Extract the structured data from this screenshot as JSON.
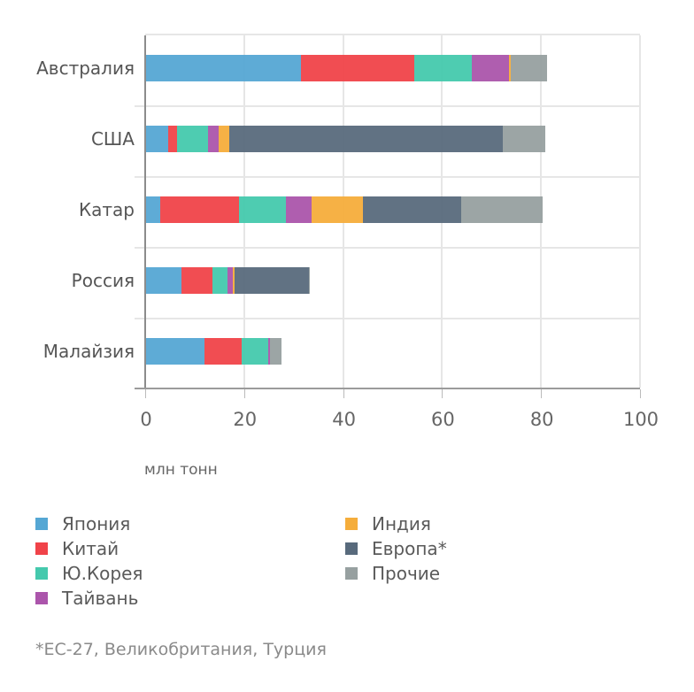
{
  "chart_data": {
    "type": "bar",
    "orientation": "horizontal",
    "stacked": true,
    "title": "",
    "xlabel": "млн тонн",
    "ylabel": "",
    "xlim": [
      0,
      100
    ],
    "x_ticks": [
      0,
      20,
      40,
      60,
      80,
      100
    ],
    "grid": true,
    "legend_position": "bottom",
    "categories": [
      "Австралия",
      "США",
      "Катар",
      "Россия",
      "Малайзия"
    ],
    "series": [
      {
        "name": "Япония",
        "color": "#55a7d4",
        "values": [
          31.5,
          4.6,
          3.0,
          7.3,
          12.0
        ]
      },
      {
        "name": "Китай",
        "color": "#f04349",
        "values": [
          22.9,
          1.8,
          16.0,
          6.3,
          7.5
        ]
      },
      {
        "name": "Ю.Корея",
        "color": "#45c9ad",
        "values": [
          11.6,
          6.3,
          9.5,
          3.0,
          5.4
        ]
      },
      {
        "name": "Тайвань",
        "color": "#ab55ab",
        "values": [
          7.5,
          2.1,
          5.2,
          1.1,
          0.4
        ]
      },
      {
        "name": "Индия",
        "color": "#f5ad3b",
        "values": [
          0.4,
          2.2,
          10.3,
          0.4,
          0.0
        ]
      },
      {
        "name": "Европа*",
        "color": "#586a7c",
        "values": [
          0.0,
          55.3,
          19.9,
          15.0,
          0.0
        ]
      },
      {
        "name": "Прочие",
        "color": "#97a0a0",
        "values": [
          7.3,
          8.6,
          16.4,
          0.2,
          2.3
        ]
      }
    ],
    "totals": [
      81.2,
      80.9,
      80.3,
      33.3,
      27.6
    ],
    "annotations": [
      "*ЕС-27, Великобритания, Турция"
    ]
  },
  "axis": {
    "unit_label": "млн тонн",
    "tick_labels": [
      "0",
      "20",
      "40",
      "60",
      "80",
      "100"
    ]
  },
  "legend": {
    "items": [
      {
        "label": "Япония",
        "color": "#55a7d4"
      },
      {
        "label": "Китай",
        "color": "#f04349"
      },
      {
        "label": "Ю.Корея",
        "color": "#45c9ad"
      },
      {
        "label": "Тайвань",
        "color": "#ab55ab"
      },
      {
        "label": "Индия",
        "color": "#f5ad3b"
      },
      {
        "label": "Европа*",
        "color": "#586a7c"
      },
      {
        "label": "Прочие",
        "color": "#97a0a0"
      }
    ]
  },
  "footnote": "*ЕС-27, Великобритания, Турция"
}
